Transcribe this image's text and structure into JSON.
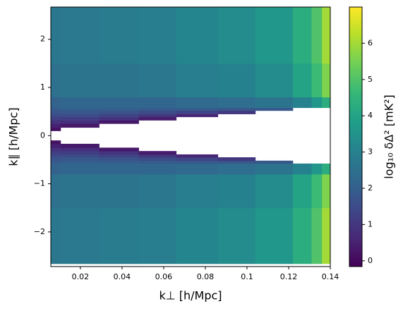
{
  "chart_data": {
    "type": "heatmap",
    "xlabel": "k⊥ [h/Mpc]",
    "ylabel": "k∥ [h/Mpc]",
    "colorbar_label": "log₁₀ δΔ² [mK²]",
    "colormap": "viridis",
    "xlim": [
      0.0058,
      0.14
    ],
    "ylim": [
      -2.72,
      2.67
    ],
    "clim": [
      -0.16,
      7.0
    ],
    "xticks": [
      0.02,
      0.04,
      0.06,
      0.08,
      0.1,
      0.12,
      0.14
    ],
    "yticks": [
      {
        "value": -2,
        "label": "−2"
      },
      {
        "value": -1,
        "label": "−1"
      },
      0,
      1,
      2
    ],
    "cticks": [
      0,
      1,
      2,
      3,
      4,
      5,
      6
    ],
    "x_edges": [
      0.0058,
      0.0105,
      0.029,
      0.048,
      0.066,
      0.086,
      0.104,
      0.122,
      0.131,
      0.136,
      0.14
    ],
    "y_edges": [
      -2.66,
      -1.5,
      -0.8,
      -0.58,
      -0.52,
      -0.45,
      -0.39,
      -0.32,
      -0.25,
      -0.17,
      -0.1,
      0.1,
      0.17,
      0.25,
      0.32,
      0.39,
      0.45,
      0.52,
      0.58,
      0.8,
      1.5,
      2.67
    ],
    "values": [
      [
        2.7,
        2.5,
        2.1,
        1.9,
        1.7,
        1.5,
        1.2,
        0.9,
        0.5,
        0.2,
        null,
        0.2,
        0.5,
        0.9,
        1.2,
        1.5,
        1.7,
        1.9,
        2.1,
        2.5,
        2.7
      ],
      [
        2.75,
        2.6,
        2.2,
        2.0,
        1.8,
        1.5,
        1.2,
        0.8,
        0.3,
        null,
        null,
        null,
        0.3,
        0.8,
        1.2,
        1.5,
        1.8,
        2.0,
        2.2,
        2.6,
        2.75
      ],
      [
        2.8,
        2.6,
        2.2,
        2.0,
        1.7,
        1.3,
        0.9,
        0.3,
        null,
        null,
        null,
        null,
        null,
        0.3,
        0.9,
        1.3,
        1.7,
        2.0,
        2.2,
        2.6,
        2.8
      ],
      [
        2.9,
        2.7,
        2.2,
        1.9,
        1.5,
        1.0,
        0.4,
        null,
        null,
        null,
        null,
        null,
        null,
        null,
        0.4,
        1.0,
        1.5,
        1.9,
        2.2,
        2.7,
        2.9
      ],
      [
        3.1,
        2.9,
        2.3,
        1.9,
        1.3,
        0.6,
        null,
        null,
        null,
        null,
        null,
        null,
        null,
        null,
        null,
        0.6,
        1.3,
        1.9,
        2.3,
        2.9,
        3.1
      ],
      [
        3.3,
        3.0,
        2.4,
        1.8,
        1.0,
        null,
        null,
        null,
        null,
        null,
        null,
        null,
        null,
        null,
        null,
        null,
        1.0,
        1.8,
        2.4,
        3.0,
        3.3
      ],
      [
        3.6,
        3.3,
        2.6,
        1.8,
        null,
        null,
        null,
        null,
        null,
        null,
        null,
        null,
        null,
        null,
        null,
        null,
        null,
        1.8,
        2.6,
        3.3,
        3.6
      ],
      [
        4.3,
        4.0,
        3.0,
        null,
        null,
        null,
        null,
        null,
        null,
        null,
        null,
        null,
        null,
        null,
        null,
        null,
        null,
        null,
        3.0,
        4.0,
        4.3
      ],
      [
        5.0,
        4.7,
        3.6,
        null,
        null,
        null,
        null,
        null,
        null,
        null,
        null,
        null,
        null,
        null,
        null,
        null,
        null,
        null,
        3.6,
        4.7,
        5.0
      ],
      [
        6.0,
        5.6,
        4.3,
        null,
        null,
        null,
        null,
        null,
        null,
        null,
        null,
        null,
        null,
        null,
        null,
        null,
        null,
        null,
        4.3,
        5.6,
        6.0
      ]
    ]
  }
}
